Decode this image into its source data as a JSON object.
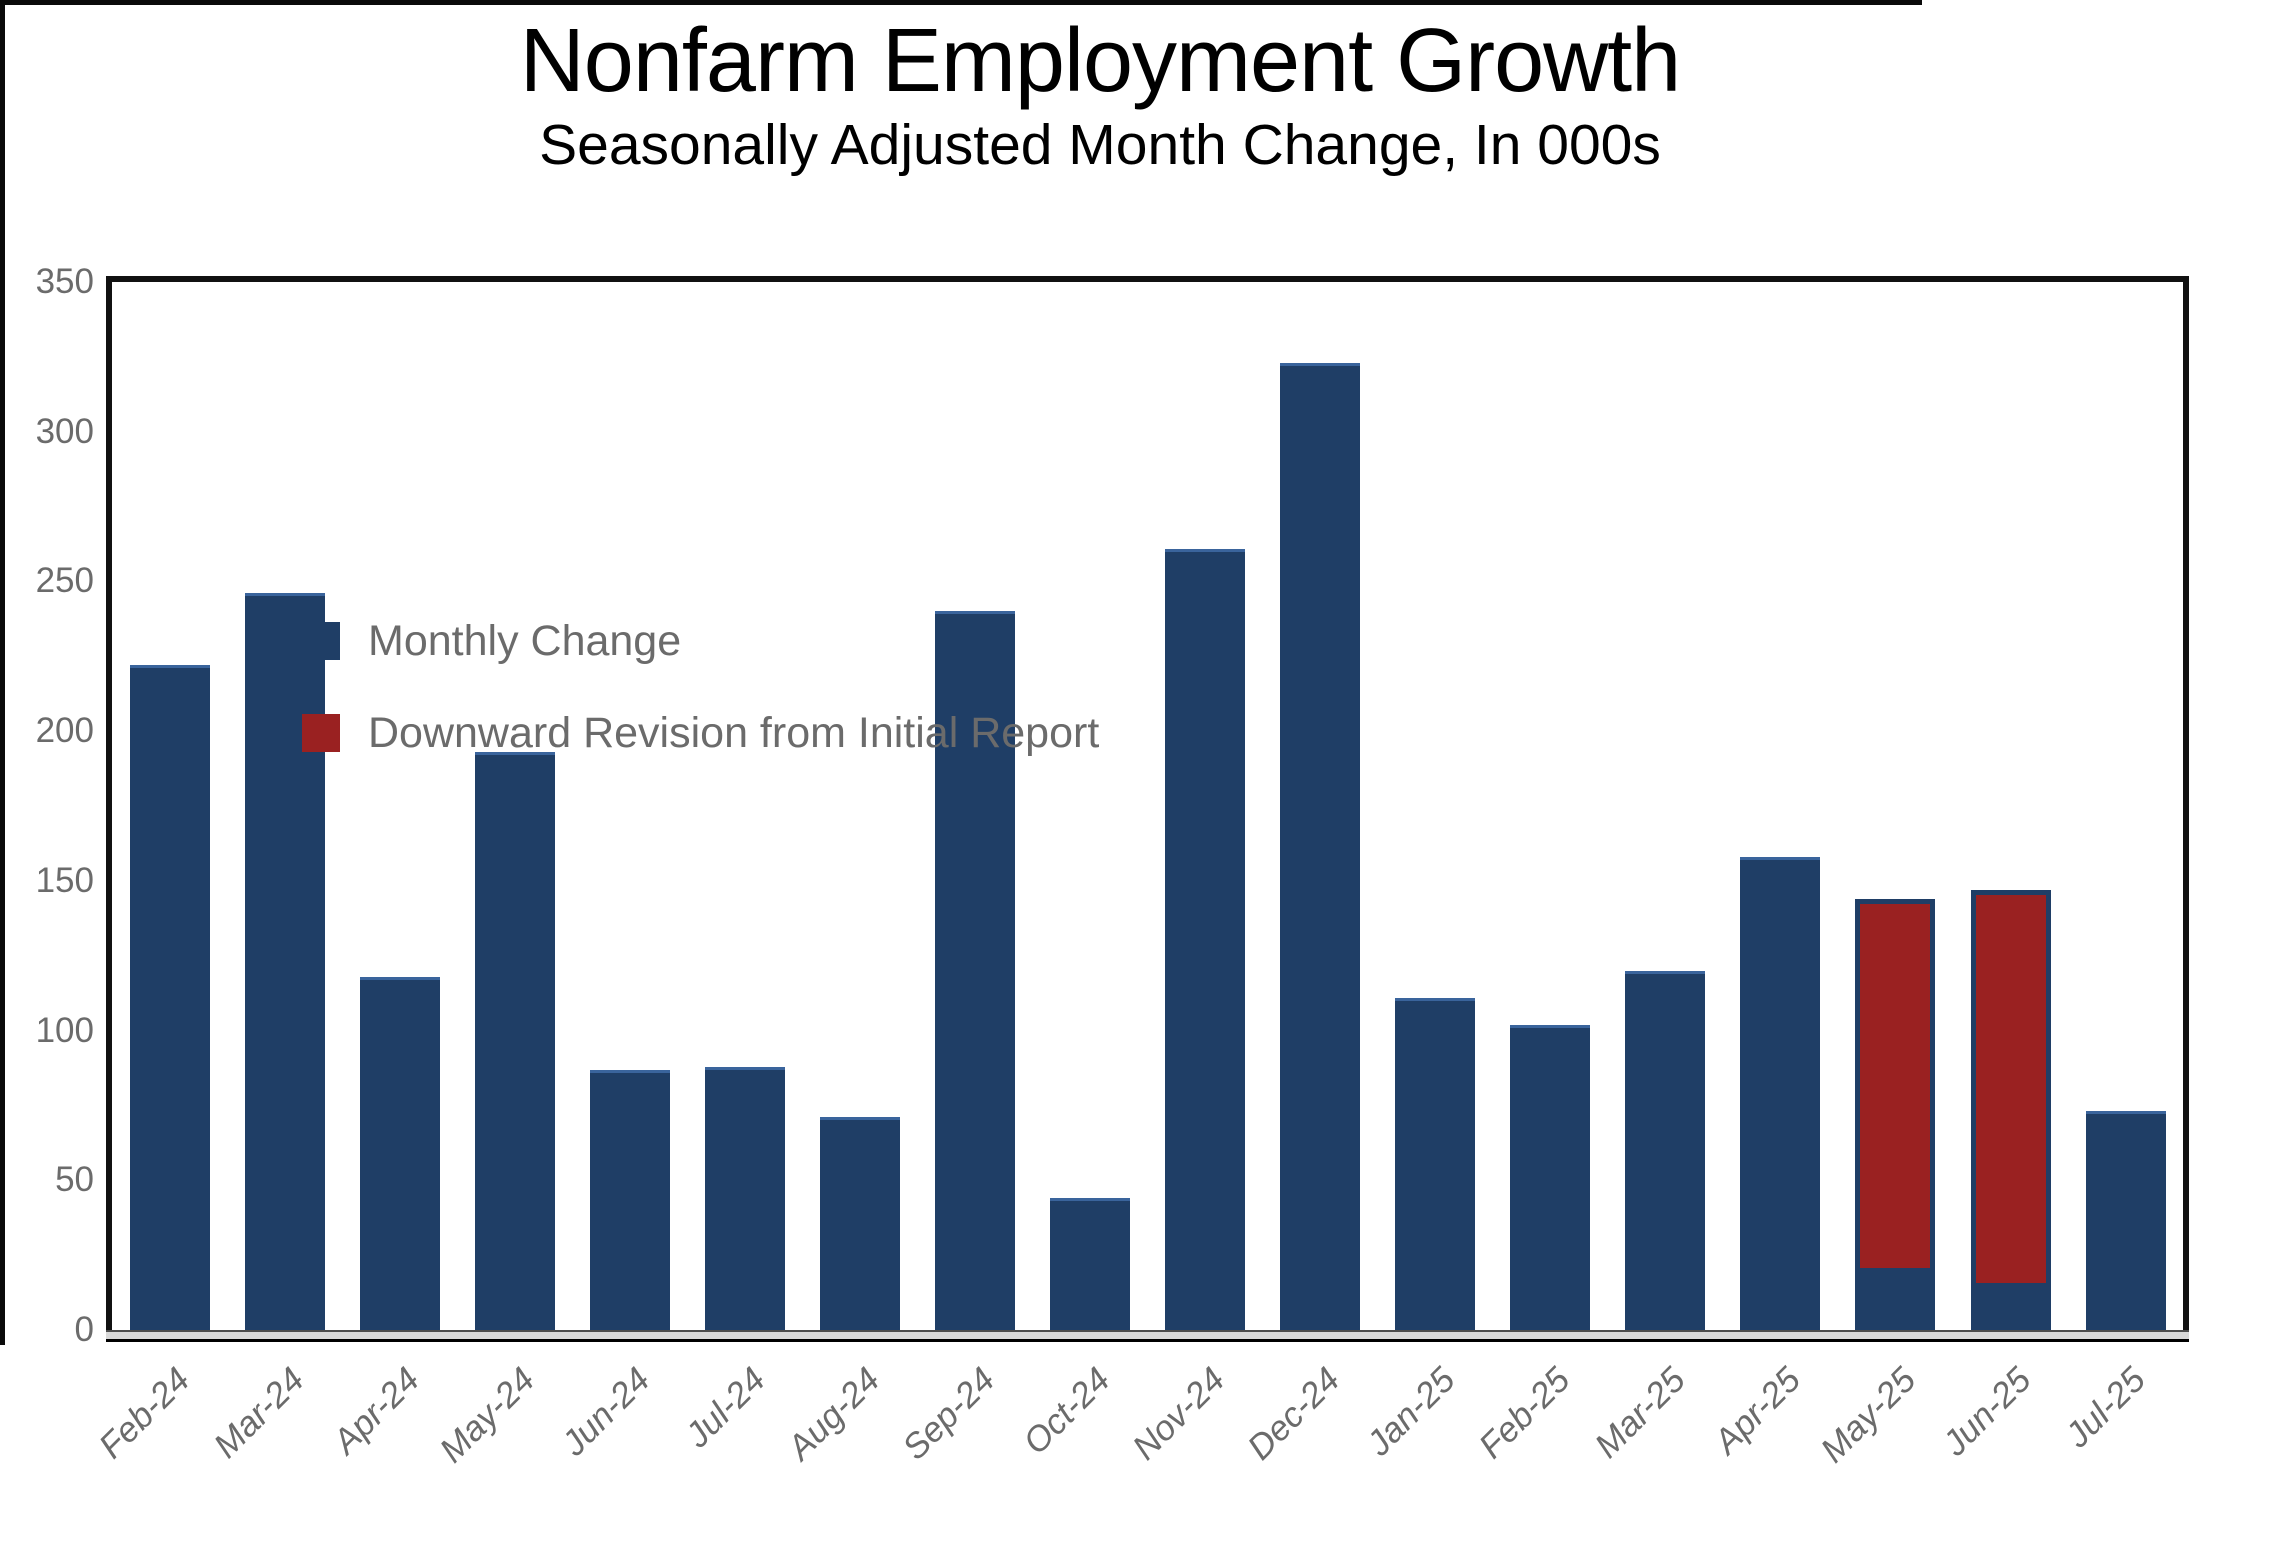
{
  "header": {
    "title": "Nonfarm Employment Growth",
    "subtitle": "Seasonally Adjusted Month Change, In 000s"
  },
  "chart_data": {
    "type": "bar",
    "stacked": true,
    "title": "Nonfarm Employment Growth",
    "subtitle": "Seasonally Adjusted Month Change, In 000s",
    "categories": [
      "Feb-24",
      "Mar-24",
      "Apr-24",
      "May-24",
      "Jun-24",
      "Jul-24",
      "Aug-24",
      "Sep-24",
      "Oct-24",
      "Nov-24",
      "Dec-24",
      "Jan-25",
      "Feb-25",
      "Mar-25",
      "Apr-25",
      "May-25",
      "Jun-25",
      "Jul-25"
    ],
    "series": [
      {
        "name": "Monthly Change",
        "color": "#1f3e66",
        "values": [
          222,
          246,
          118,
          193,
          87,
          88,
          71,
          240,
          44,
          261,
          323,
          111,
          102,
          120,
          158,
          19,
          14,
          73
        ]
      },
      {
        "name": "Downward Revision from Initial Report",
        "color": "#9a2121",
        "values": [
          0,
          0,
          0,
          0,
          0,
          0,
          0,
          0,
          0,
          0,
          0,
          0,
          0,
          0,
          0,
          125,
          133,
          0
        ]
      }
    ],
    "xlabel": "",
    "ylabel": "",
    "ylim": [
      0,
      350
    ],
    "yticks": [
      0,
      50,
      100,
      150,
      200,
      250,
      300,
      350
    ],
    "grid": false,
    "legend_position": "inside-top-left",
    "bar_edge_color": "#3a649c",
    "revision_outline_color": "#1f3e66",
    "axis_text_color": "#6b6b6b"
  }
}
